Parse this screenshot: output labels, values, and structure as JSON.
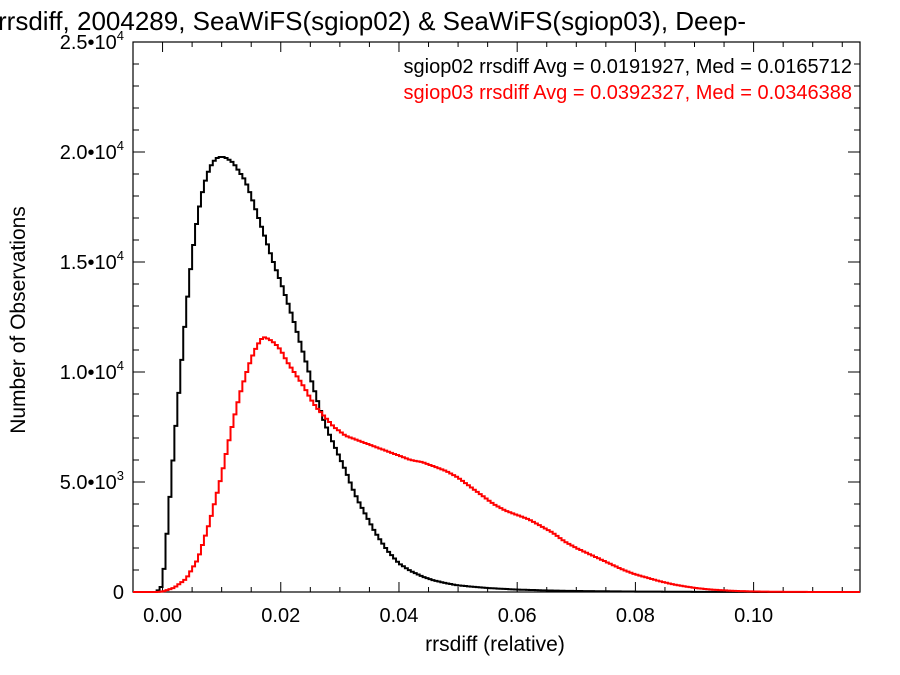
{
  "chart_data": {
    "type": "line",
    "title": "rrsdiff, 2004289, SeaWiFS(sgiop02) & SeaWiFS(sgiop03), Deep-",
    "xlabel": "rrsdiff (relative)",
    "ylabel": "Number of Observations",
    "xlim": [
      -0.005,
      0.118
    ],
    "ylim": [
      0,
      25000
    ],
    "grid": false,
    "x_ticks": [
      {
        "value": 0.0,
        "label": "0.00"
      },
      {
        "value": 0.02,
        "label": "0.02"
      },
      {
        "value": 0.04,
        "label": "0.04"
      },
      {
        "value": 0.06,
        "label": "0.06"
      },
      {
        "value": 0.08,
        "label": "0.08"
      },
      {
        "value": 0.1,
        "label": "0.10"
      }
    ],
    "y_ticks": [
      {
        "value": 0,
        "mantissa": "0",
        "exp": ""
      },
      {
        "value": 5000,
        "mantissa": "5.0•10",
        "exp": "3"
      },
      {
        "value": 10000,
        "mantissa": "1.0•10",
        "exp": "4"
      },
      {
        "value": 15000,
        "mantissa": "1.5•10",
        "exp": "4"
      },
      {
        "value": 20000,
        "mantissa": "2.0•10",
        "exp": "4"
      },
      {
        "value": 25000,
        "mantissa": "2.5•10",
        "exp": "4"
      }
    ],
    "annotations": [
      {
        "text": "sgiop02 rrsdiff Avg = 0.0191927, Med = 0.0165712",
        "color": "#000000"
      },
      {
        "text": "sgiop03 rrsdiff Avg = 0.0392327, Med = 0.0346388",
        "color": "#ff0000"
      }
    ],
    "series": [
      {
        "color": "#000000",
        "x": [
          -0.004,
          -0.001,
          0.0,
          0.0005,
          0.001,
          0.002,
          0.003,
          0.004,
          0.005,
          0.006,
          0.007,
          0.008,
          0.009,
          0.01,
          0.011,
          0.012,
          0.013,
          0.014,
          0.015,
          0.016,
          0.017,
          0.018,
          0.019,
          0.02,
          0.021,
          0.022,
          0.023,
          0.024,
          0.025,
          0.026,
          0.027,
          0.028,
          0.029,
          0.03,
          0.031,
          0.032,
          0.033,
          0.034,
          0.035,
          0.036,
          0.037,
          0.038,
          0.039,
          0.04,
          0.042,
          0.044,
          0.046,
          0.048,
          0.05,
          0.055,
          0.06,
          0.065,
          0.07,
          0.08,
          0.09,
          0.1,
          0.11,
          0.118
        ],
        "y": [
          0,
          0,
          300,
          1800,
          3500,
          6800,
          9800,
          12800,
          15300,
          17200,
          18500,
          19300,
          19700,
          19800,
          19700,
          19500,
          19100,
          18700,
          18000,
          17200,
          16400,
          15600,
          14800,
          14100,
          13300,
          12500,
          11600,
          10700,
          9800,
          8900,
          8000,
          7300,
          6700,
          6100,
          5500,
          4800,
          4200,
          3700,
          3200,
          2700,
          2300,
          1900,
          1600,
          1300,
          950,
          700,
          520,
          400,
          300,
          180,
          110,
          70,
          45,
          20,
          8,
          3,
          1,
          0
        ]
      },
      {
        "color": "#ff0000",
        "x": [
          -0.004,
          -0.001,
          0.0,
          0.002,
          0.004,
          0.006,
          0.008,
          0.01,
          0.011,
          0.012,
          0.013,
          0.014,
          0.015,
          0.016,
          0.017,
          0.018,
          0.019,
          0.02,
          0.021,
          0.022,
          0.023,
          0.024,
          0.025,
          0.026,
          0.027,
          0.028,
          0.029,
          0.03,
          0.031,
          0.032,
          0.034,
          0.036,
          0.038,
          0.04,
          0.042,
          0.044,
          0.046,
          0.048,
          0.05,
          0.052,
          0.054,
          0.056,
          0.058,
          0.06,
          0.062,
          0.064,
          0.066,
          0.068,
          0.07,
          0.072,
          0.074,
          0.076,
          0.078,
          0.08,
          0.082,
          0.084,
          0.086,
          0.088,
          0.09,
          0.092,
          0.094,
          0.096,
          0.098,
          0.1,
          0.102,
          0.104,
          0.106,
          0.108,
          0.11,
          0.112,
          0.114,
          0.116,
          0.118
        ],
        "y": [
          0,
          0,
          20,
          200,
          600,
          1500,
          3200,
          5300,
          6600,
          7800,
          8900,
          9800,
          10600,
          11200,
          11600,
          11500,
          11300,
          11000,
          10500,
          10100,
          9700,
          9300,
          8800,
          8400,
          8100,
          7800,
          7500,
          7300,
          7100,
          7000,
          6800,
          6600,
          6400,
          6200,
          6000,
          5900,
          5700,
          5500,
          5200,
          4800,
          4400,
          4000,
          3700,
          3500,
          3300,
          3000,
          2700,
          2300,
          2000,
          1750,
          1500,
          1250,
          1000,
          800,
          650,
          500,
          370,
          270,
          190,
          130,
          90,
          60,
          40,
          25,
          15,
          10,
          6,
          4,
          2,
          1,
          1,
          0,
          0
        ]
      }
    ]
  }
}
